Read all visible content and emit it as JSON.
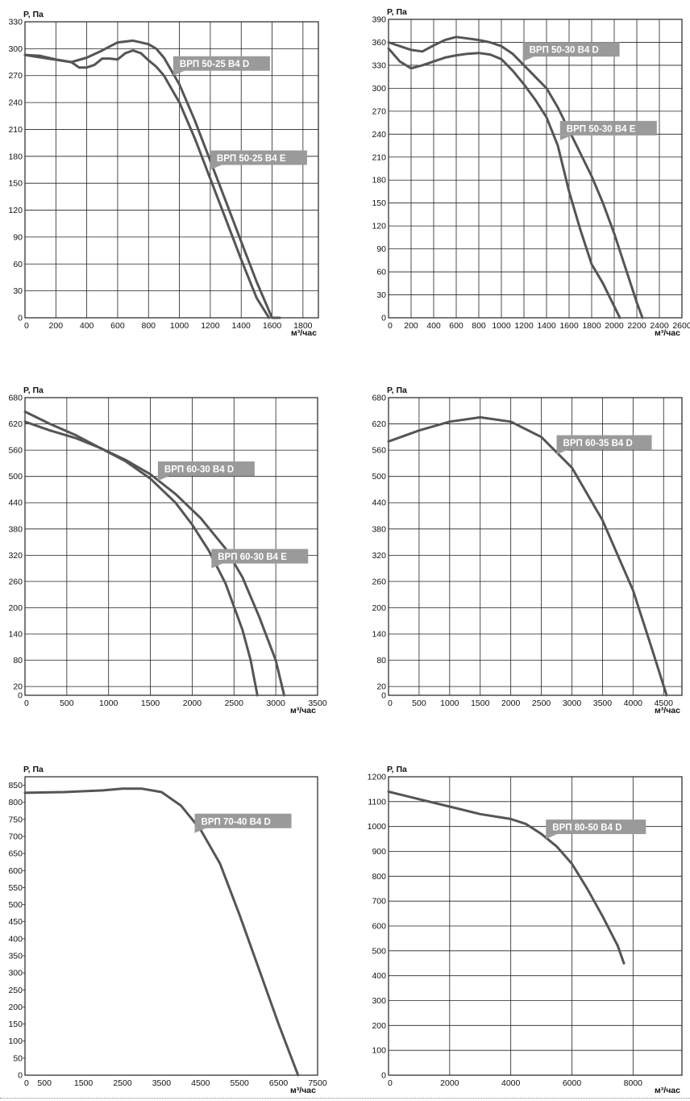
{
  "style": {
    "line_color": "#555555",
    "grid_color": "#222222",
    "callout_bg": "#9a9a9a",
    "callout_text": "#ffffff"
  },
  "chart_data": [
    {
      "type": "line",
      "ylabel": "P, Па",
      "xlabel": "м³/час",
      "xlim": [
        0,
        1900
      ],
      "ylim": [
        0,
        330
      ],
      "xticks": [
        0,
        200,
        400,
        600,
        800,
        1000,
        1200,
        1400,
        1600,
        1800
      ],
      "yticks": [
        0,
        30,
        60,
        90,
        120,
        150,
        180,
        210,
        240,
        270,
        300,
        330
      ],
      "grid": true,
      "series": [
        {
          "name": "ВРП 50-25 В4 D",
          "x": [
            0,
            150,
            300,
            350,
            400,
            450,
            500,
            550,
            600,
            650,
            700,
            750,
            800,
            850,
            900,
            1000,
            1100,
            1200,
            1300,
            1400,
            1500,
            1580
          ],
          "y": [
            293,
            289,
            285,
            279,
            279,
            282,
            289,
            289,
            288,
            295,
            298,
            295,
            287,
            280,
            270,
            240,
            200,
            155,
            110,
            65,
            22,
            0
          ]
        },
        {
          "name": "ВРП 50-25 В4 E",
          "x": [
            0,
            100,
            200,
            300,
            400,
            500,
            600,
            700,
            750,
            800,
            850,
            900,
            1000,
            1100,
            1200,
            1300,
            1400,
            1500,
            1600,
            1650
          ],
          "y": [
            293,
            292,
            288,
            285,
            290,
            298,
            307,
            309,
            307,
            305,
            300,
            290,
            260,
            220,
            175,
            130,
            85,
            40,
            0,
            0
          ]
        }
      ],
      "annotations": [
        {
          "text": "ВРП 50-25 В4 D",
          "x": 960,
          "y": 270
        },
        {
          "text": "ВРП 50-25 В4 E",
          "x": 1200,
          "y": 165
        }
      ]
    },
    {
      "type": "line",
      "ylabel": "P, Па",
      "xlabel": "м³/час",
      "xlim": [
        0,
        2600
      ],
      "ylim": [
        0,
        390
      ],
      "xticks": [
        0,
        200,
        400,
        600,
        800,
        1000,
        1200,
        1400,
        1600,
        1800,
        2000,
        2200,
        2400,
        2600
      ],
      "yticks": [
        0,
        30,
        60,
        90,
        120,
        150,
        180,
        210,
        240,
        270,
        300,
        330,
        360,
        390
      ],
      "grid": true,
      "series": [
        {
          "name": "ВРП 50-30 В4 D",
          "x": [
            0,
            100,
            200,
            300,
            400,
            500,
            600,
            700,
            800,
            900,
            1000,
            1100,
            1200,
            1300,
            1400,
            1500,
            1600,
            1700,
            1800,
            1900,
            2000,
            2100,
            2200,
            2250
          ],
          "y": [
            360,
            355,
            350,
            348,
            356,
            363,
            367,
            365,
            363,
            360,
            355,
            345,
            330,
            315,
            300,
            275,
            245,
            215,
            185,
            150,
            110,
            65,
            20,
            0
          ]
        },
        {
          "name": "ВРП 50-30 В4 E",
          "x": [
            0,
            100,
            200,
            300,
            400,
            500,
            600,
            700,
            800,
            900,
            1000,
            1100,
            1200,
            1300,
            1400,
            1500,
            1600,
            1700,
            1800,
            1900,
            2000,
            2050
          ],
          "y": [
            352,
            335,
            326,
            330,
            335,
            340,
            343,
            345,
            346,
            344,
            338,
            323,
            305,
            285,
            262,
            225,
            165,
            115,
            70,
            45,
            15,
            0
          ]
        }
      ],
      "annotations": [
        {
          "text": "ВРП 50-30 В4 D",
          "x": 1190,
          "y": 335
        },
        {
          "text": "ВРП 50-30 В4 E",
          "x": 1520,
          "y": 232
        }
      ]
    },
    {
      "type": "line",
      "ylabel": "P, Па",
      "xlabel": "м³/час",
      "xlim": [
        0,
        3500
      ],
      "ylim": [
        0,
        680
      ],
      "xticks": [
        0,
        500,
        1000,
        1500,
        2000,
        2500,
        3000,
        3500
      ],
      "yticks": [
        0,
        20,
        80,
        140,
        200,
        260,
        320,
        380,
        440,
        500,
        560,
        620,
        680
      ],
      "grid": true,
      "series": [
        {
          "name": "ВРП 60-30 В4 D",
          "x": [
            0,
            300,
            600,
            900,
            1200,
            1500,
            1800,
            2000,
            2200,
            2400,
            2600,
            2700,
            2780
          ],
          "y": [
            648,
            620,
            595,
            565,
            535,
            495,
            440,
            390,
            330,
            255,
            150,
            80,
            0
          ]
        },
        {
          "name": "ВРП 60-30 В4 E",
          "x": [
            0,
            300,
            600,
            900,
            1200,
            1500,
            1800,
            2100,
            2400,
            2600,
            2800,
            3000,
            3100
          ],
          "y": [
            625,
            605,
            588,
            565,
            538,
            505,
            460,
            405,
            335,
            270,
            180,
            80,
            0
          ]
        }
      ],
      "annotations": [
        {
          "text": "ВРП 60-30 В4 D",
          "x": 1590,
          "y": 490
        },
        {
          "text": "ВРП 60-30 В4 E",
          "x": 2230,
          "y": 290
        }
      ]
    },
    {
      "type": "line",
      "ylabel": "P, Па",
      "xlabel": "м³/час",
      "xlim": [
        0,
        4800
      ],
      "ylim": [
        0,
        680
      ],
      "xticks": [
        0,
        500,
        1000,
        1500,
        2000,
        2500,
        3000,
        3500,
        4000,
        4500
      ],
      "yticks": [
        0,
        20,
        80,
        140,
        200,
        260,
        320,
        380,
        440,
        500,
        560,
        620,
        680
      ],
      "grid": true,
      "series": [
        {
          "name": "ВРП 60-35 В4 D",
          "x": [
            0,
            500,
            1000,
            1500,
            2000,
            2500,
            3000,
            3500,
            4000,
            4300,
            4550
          ],
          "y": [
            580,
            605,
            625,
            635,
            625,
            590,
            520,
            400,
            240,
            110,
            0
          ]
        }
      ],
      "annotations": [
        {
          "text": "ВРП 60-35 В4 D",
          "x": 2750,
          "y": 550
        }
      ]
    },
    {
      "type": "line",
      "ylabel": "P, Па",
      "xlabel": "м³/час",
      "xlim": [
        0,
        7500
      ],
      "ylim": [
        0,
        875
      ],
      "xticks": [
        0,
        500,
        1500,
        2500,
        3500,
        4500,
        5500,
        6500,
        7500
      ],
      "yticks": [
        0,
        50,
        100,
        150,
        200,
        250,
        300,
        350,
        400,
        450,
        500,
        550,
        600,
        650,
        700,
        750,
        800,
        850
      ],
      "grid": false,
      "series": [
        {
          "name": "ВРП 70-40 В4 D",
          "x": [
            0,
            1000,
            2000,
            2500,
            3000,
            3500,
            4000,
            4500,
            5000,
            5500,
            6000,
            6500,
            6800,
            7000
          ],
          "y": [
            828,
            830,
            835,
            840,
            840,
            830,
            790,
            720,
            620,
            470,
            310,
            150,
            60,
            0
          ]
        }
      ],
      "annotations": [
        {
          "text": "ВРП 70-40 В4 D",
          "x": 4350,
          "y": 710
        }
      ]
    },
    {
      "type": "line",
      "ylabel": "P, Па",
      "xlabel": "м³/час",
      "xlim": [
        0,
        9600
      ],
      "ylim": [
        0,
        1200
      ],
      "xticks": [
        0,
        2000,
        4000,
        6000,
        8000
      ],
      "yticks": [
        0,
        100,
        200,
        300,
        400,
        500,
        600,
        700,
        800,
        900,
        1000,
        1100,
        1200
      ],
      "grid": true,
      "series": [
        {
          "name": "ВРП 80-50 В4 D",
          "x": [
            0,
            1000,
            2000,
            3000,
            4000,
            4500,
            5000,
            5500,
            6000,
            6500,
            7000,
            7500,
            7700
          ],
          "y": [
            1140,
            1110,
            1080,
            1050,
            1030,
            1010,
            970,
            920,
            850,
            750,
            640,
            520,
            450
          ]
        }
      ],
      "annotations": [
        {
          "text": "ВРП 80-50 В4 D",
          "x": 5150,
          "y": 950
        }
      ]
    }
  ]
}
